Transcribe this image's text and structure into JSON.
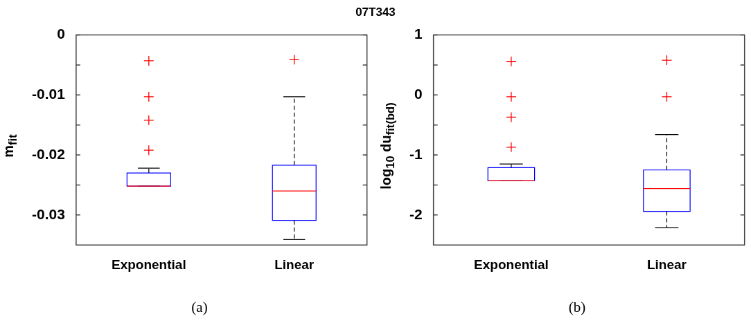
{
  "chart_data": [
    {
      "type": "box",
      "title": "07T343",
      "ylabel": "m$_{fit}$",
      "categories": [
        "Exponential",
        "Linear"
      ],
      "boxes": [
        {
          "low": -0.0252,
          "q1": -0.0252,
          "median": -0.0252,
          "q3": -0.023,
          "high": -0.0222,
          "outliers": [
            -0.0043,
            -0.0103,
            -0.0142,
            -0.0192
          ]
        },
        {
          "low": -0.0341,
          "q1": -0.0309,
          "median": -0.026,
          "q3": -0.0217,
          "high": -0.0103,
          "outliers": [
            -0.0041
          ]
        }
      ],
      "ylim": [
        -0.035,
        0
      ],
      "yticks": [
        0,
        {
          "value": -0.005,
          "label": null
        },
        -0.01,
        {
          "value": -0.015,
          "label": null
        },
        -0.02,
        {
          "value": -0.025,
          "label": null
        },
        -0.03
      ],
      "annotations": [
        "(a)"
      ]
    },
    {
      "type": "box",
      "ylabel": "log$_{10}$ du$_{fit(bd)}$",
      "categories": [
        "Exponential",
        "Linear"
      ],
      "boxes": [
        {
          "low": -1.43,
          "q1": -1.43,
          "median": -1.43,
          "q3": -1.21,
          "high": -1.15,
          "outliers": [
            0.56,
            -0.03,
            -0.37,
            -0.87
          ]
        },
        {
          "low": -2.21,
          "q1": -1.94,
          "median": -1.56,
          "q3": -1.25,
          "high": -0.66,
          "outliers": [
            0.58,
            -0.03
          ]
        }
      ],
      "ylim": [
        -2.5,
        1
      ],
      "yticks": [
        1,
        {
          "value": 0.5,
          "label": null
        },
        0,
        {
          "value": -0.5,
          "label": null
        },
        -1,
        {
          "value": -1.5,
          "label": null
        },
        -2
      ],
      "annotations": [
        "(b)"
      ]
    }
  ]
}
